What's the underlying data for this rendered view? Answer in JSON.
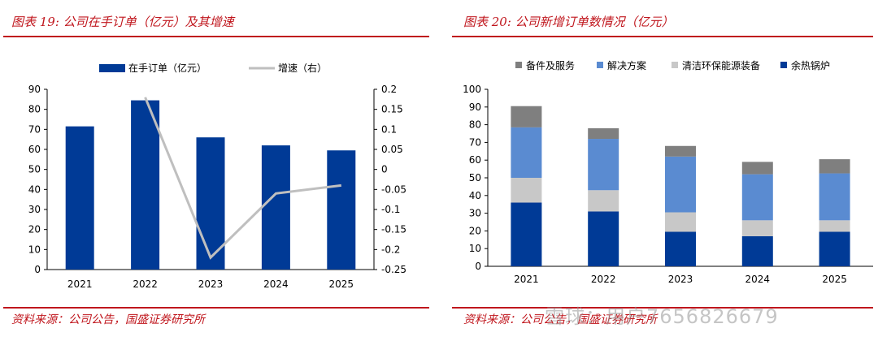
{
  "charts": {
    "left": {
      "figure_title": "图表 19:  公司在手订单（亿元）及其增速",
      "source": "资料来源：公司公告，国盛证券研究所"
    },
    "right": {
      "figure_title": "图表 20:  公司新增订单数情况（亿元）",
      "source": "资料来源：公司公告，国盛证券研究所"
    }
  },
  "watermark": "雪球：用户7656826679",
  "colors": {
    "title_red": "#c0161d",
    "navy": "#003a96",
    "line_gray": "#bfbfbf",
    "spare": "#7f7f7f",
    "solution": "#5a8bd1",
    "clean": "#c8c8c8",
    "boiler": "#003a96"
  },
  "chart_data": [
    {
      "type": "bar",
      "categories": [
        "2021",
        "2022",
        "2023",
        "2024",
        "2025"
      ],
      "series": [
        {
          "name": "在手订单（亿元）",
          "values": [
            71.5,
            84.5,
            66,
            62,
            59.5
          ],
          "axis": "left"
        },
        {
          "name": "增速（右）",
          "type": "line",
          "values": [
            null,
            0.18,
            -0.22,
            -0.06,
            -0.04
          ],
          "axis": "right"
        }
      ],
      "ylim": [
        0,
        90
      ],
      "yticks": [
        0,
        10,
        20,
        30,
        40,
        50,
        60,
        70,
        80,
        90
      ],
      "y2lim": [
        -0.25,
        0.2
      ],
      "y2ticks": [
        "0.2",
        "0.15",
        "0.1",
        "0.05",
        "0",
        "-0.05",
        "-0.1",
        "-0.15",
        "-0.2",
        "-0.25"
      ],
      "legend": "top"
    },
    {
      "type": "bar",
      "stacked": true,
      "categories": [
        "2021",
        "2022",
        "2023",
        "2024",
        "2025"
      ],
      "series": [
        {
          "name": "余热锅炉",
          "values": [
            36,
            31,
            19.5,
            17,
            19.5
          ]
        },
        {
          "name": "清洁环保能源装备",
          "values": [
            14,
            12,
            11,
            9,
            6.5
          ]
        },
        {
          "name": "解决方案",
          "values": [
            28.5,
            29,
            31.5,
            26,
            26.5
          ]
        },
        {
          "name": "备件及服务",
          "values": [
            12,
            6,
            6,
            7,
            8
          ]
        }
      ],
      "legend_order": [
        "备件及服务",
        "解决方案",
        "清洁环保能源装备",
        "余热锅炉"
      ],
      "ylim": [
        0,
        100
      ],
      "yticks": [
        0,
        10,
        20,
        30,
        40,
        50,
        60,
        70,
        80,
        90,
        100
      ],
      "legend": "top"
    }
  ]
}
